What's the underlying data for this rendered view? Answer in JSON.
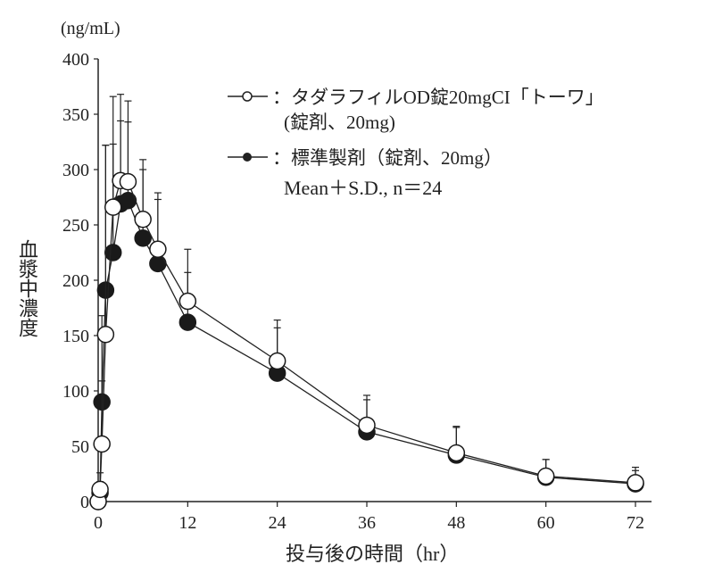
{
  "chart_data": {
    "type": "line",
    "ylabel": "血漿中濃度",
    "yunit": "(ng/mL)",
    "xlabel": "投与後の時間（hr）",
    "xlim": [
      0,
      72
    ],
    "ylim": [
      0,
      400
    ],
    "xticks": [
      0,
      12,
      24,
      36,
      48,
      60,
      72
    ],
    "yticks": [
      0,
      50,
      100,
      150,
      200,
      250,
      300,
      350,
      400
    ],
    "grid": false,
    "legend_position": "top-right",
    "legend_note": "Mean＋S.D., n＝24",
    "series": [
      {
        "name": "タダラフィルOD錠20mgCI「トーワ」",
        "name_line2": "(錠剤、20mg)",
        "marker": "open-circle",
        "x": [
          0,
          0.25,
          0.5,
          1,
          2,
          3,
          4,
          6,
          8,
          12,
          24,
          36,
          48,
          60,
          72
        ],
        "y": [
          0,
          11,
          52,
          151,
          266,
          290,
          289,
          255,
          228,
          181,
          127,
          69,
          44,
          23,
          17
        ],
        "sd": [
          0,
          15,
          116,
          171,
          100,
          78,
          73,
          54,
          51,
          47,
          37,
          27,
          24,
          15,
          14
        ]
      },
      {
        "name": "標準製剤（錠剤、20mg）",
        "marker": "filled-circle",
        "x": [
          0,
          0.25,
          0.5,
          1,
          2,
          3,
          4,
          6,
          8,
          12,
          24,
          36,
          48,
          60,
          72
        ],
        "y": [
          0,
          8,
          90,
          191,
          225,
          269,
          272,
          238,
          215,
          162,
          116,
          63,
          42,
          22,
          16
        ],
        "sd": [
          0,
          10,
          19,
          131,
          98,
          75,
          71,
          62,
          58,
          45,
          41,
          29,
          25,
          16,
          12
        ]
      }
    ]
  }
}
